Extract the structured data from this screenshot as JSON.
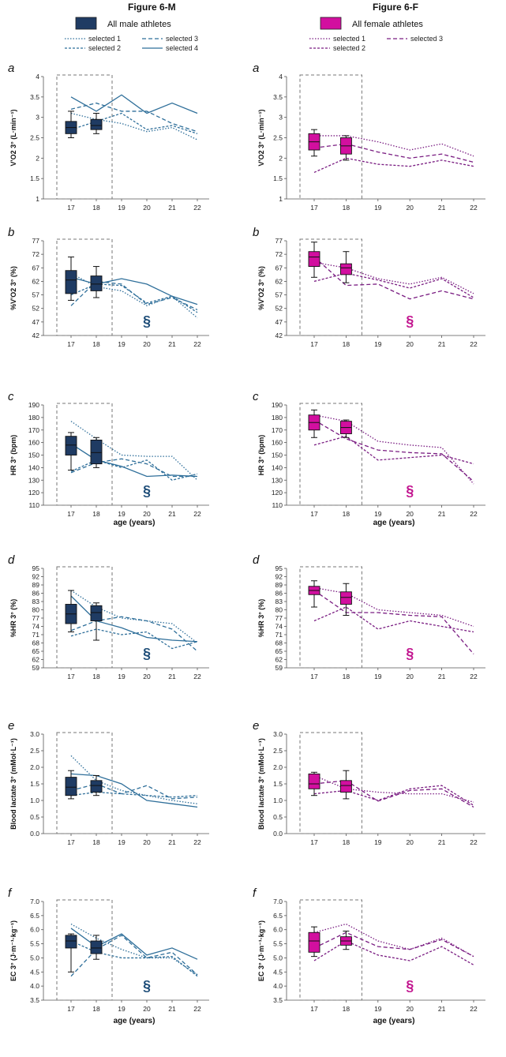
{
  "columns": [
    {
      "title": "Figure 6-M",
      "legend_box_label": "All male athletes",
      "legend_lines": [
        "selected 1",
        "selected 2",
        "selected 3",
        "selected 4"
      ],
      "colors": {
        "primary": "#1f3b63",
        "line": "#2f6f9a",
        "section": "#1f4e79"
      }
    },
    {
      "title": "Figure 6-F",
      "legend_box_label": "All female athletes",
      "legend_lines": [
        "selected 1",
        "selected 2",
        "selected 3"
      ],
      "colors": {
        "primary": "#d20f9f",
        "line": "#7a1d82",
        "section": "#c2158f"
      }
    }
  ],
  "xlabel": "age (years)",
  "x_ticks": [
    "17",
    "18",
    "19",
    "20",
    "21",
    "22"
  ],
  "section_symbol": "§",
  "chart_data": [
    {
      "id": "a-M",
      "type": "line",
      "panel": "a",
      "group": "male",
      "ylabel": "V'O2 3° (L·min⁻¹)",
      "ylim": [
        1,
        4
      ],
      "y_ticks": [
        "1",
        "1.5",
        "2",
        "2.5",
        "3",
        "3.5",
        "4"
      ],
      "x": [
        17,
        18,
        19,
        20,
        21,
        22
      ],
      "series": [
        {
          "name": "selected 1",
          "values": [
            3.1,
            2.95,
            2.85,
            2.65,
            2.75,
            2.45
          ]
        },
        {
          "name": "selected 2",
          "values": [
            2.7,
            2.9,
            3.1,
            2.7,
            2.8,
            2.6
          ]
        },
        {
          "name": "selected 3",
          "values": [
            3.2,
            3.35,
            3.15,
            3.15,
            2.85,
            2.65
          ]
        },
        {
          "name": "selected 4",
          "values": [
            3.5,
            3.15,
            3.55,
            3.1,
            3.35,
            3.1
          ]
        }
      ],
      "boxplots": [
        {
          "x": 17,
          "min": 2.5,
          "q1": 2.6,
          "median": 2.75,
          "q3": 2.9,
          "max": 3.15
        },
        {
          "x": 18,
          "min": 2.6,
          "q1": 2.7,
          "median": 2.8,
          "q3": 2.95,
          "max": 3.1
        }
      ],
      "significance": ""
    },
    {
      "id": "a-F",
      "type": "line",
      "panel": "a",
      "group": "female",
      "ylabel": "V'O2 3° (L·min⁻¹)",
      "ylim": [
        1,
        4
      ],
      "y_ticks": [
        "1",
        "1.5",
        "2",
        "2.5",
        "3",
        "3.5",
        "4"
      ],
      "x": [
        17,
        18,
        19,
        20,
        21,
        22
      ],
      "series": [
        {
          "name": "selected 1",
          "values": [
            2.55,
            2.55,
            2.4,
            2.2,
            2.35,
            2.05
          ]
        },
        {
          "name": "selected 2",
          "values": [
            1.65,
            2.0,
            1.85,
            1.8,
            1.95,
            1.8
          ]
        },
        {
          "name": "selected 3",
          "values": [
            2.25,
            2.35,
            2.15,
            2.0,
            2.1,
            1.9
          ]
        }
      ],
      "boxplots": [
        {
          "x": 17,
          "min": 2.05,
          "q1": 2.2,
          "median": 2.4,
          "q3": 2.6,
          "max": 2.7
        },
        {
          "x": 18,
          "min": 1.95,
          "q1": 2.1,
          "median": 2.3,
          "q3": 2.5,
          "max": 2.55
        }
      ],
      "significance": ""
    },
    {
      "id": "b-M",
      "type": "line",
      "panel": "b",
      "group": "male",
      "ylabel": "%V'O2 3° (%)",
      "ylim": [
        42,
        77
      ],
      "y_ticks": [
        "42",
        "47",
        "52",
        "57",
        "62",
        "67",
        "72",
        "77"
      ],
      "x": [
        17,
        18,
        19,
        20,
        21,
        22
      ],
      "series": [
        {
          "name": "selected 1",
          "values": [
            65,
            60,
            58.5,
            53,
            56.5,
            48.5
          ]
        },
        {
          "name": "selected 2",
          "values": [
            57,
            61,
            60.5,
            54,
            56.5,
            50.5
          ]
        },
        {
          "name": "selected 3",
          "values": [
            53,
            62,
            61,
            53.5,
            56,
            51.5
          ]
        },
        {
          "name": "selected 4",
          "values": [
            63.5,
            61,
            63,
            61,
            56.5,
            53.5
          ]
        }
      ],
      "boxplots": [
        {
          "x": 17,
          "min": 55,
          "q1": 57.5,
          "median": 62.5,
          "q3": 66,
          "max": 71
        },
        {
          "x": 18,
          "min": 56,
          "q1": 58.5,
          "median": 61,
          "q3": 64,
          "max": 67.5
        }
      ],
      "significance": "§"
    },
    {
      "id": "b-F",
      "type": "line",
      "panel": "b",
      "group": "female",
      "ylabel": "%V'O2 3° (%)",
      "ylim": [
        42,
        77
      ],
      "y_ticks": [
        "42",
        "47",
        "52",
        "57",
        "62",
        "67",
        "72",
        "77"
      ],
      "x": [
        17,
        18,
        19,
        20,
        21,
        22
      ],
      "series": [
        {
          "name": "selected 1",
          "values": [
            69,
            67,
            63,
            61,
            63.5,
            57.5
          ]
        },
        {
          "name": "selected 2",
          "values": [
            62,
            65,
            62.5,
            59.5,
            63,
            56
          ]
        },
        {
          "name": "selected 3",
          "values": [
            71,
            60.5,
            61,
            55.5,
            58.5,
            55.5
          ]
        }
      ],
      "boxplots": [
        {
          "x": 17,
          "min": 63.5,
          "q1": 67.5,
          "median": 71,
          "q3": 73,
          "max": 76.5
        },
        {
          "x": 18,
          "min": 61.5,
          "q1": 64.5,
          "median": 67,
          "q3": 68.5,
          "max": 73
        }
      ],
      "significance": "§"
    },
    {
      "id": "c-M",
      "type": "line",
      "panel": "c",
      "group": "male",
      "ylabel": "HR 3° (bpm)",
      "ylim": [
        110,
        190
      ],
      "y_ticks": [
        "110",
        "120",
        "130",
        "140",
        "150",
        "160",
        "170",
        "180",
        "190"
      ],
      "x": [
        17,
        18,
        19,
        20,
        21,
        22
      ],
      "series": [
        {
          "name": "selected 1",
          "values": [
            177,
            163,
            150,
            149,
            149,
            130
          ]
        },
        {
          "name": "selected 2",
          "values": [
            137,
            146,
            140,
            146,
            130,
            135
          ]
        },
        {
          "name": "selected 3",
          "values": [
            136,
            144,
            147,
            143,
            133,
            133
          ]
        },
        {
          "name": "selected 4",
          "values": [
            159,
            146,
            141,
            133,
            134,
            133
          ]
        }
      ],
      "boxplots": [
        {
          "x": 17,
          "min": 138,
          "q1": 150,
          "median": 158,
          "q3": 165,
          "max": 168
        },
        {
          "x": 18,
          "min": 140,
          "q1": 143,
          "median": 152,
          "q3": 162,
          "max": 164
        }
      ],
      "significance": "§"
    },
    {
      "id": "c-F",
      "type": "line",
      "panel": "c",
      "group": "female",
      "ylabel": "HR 3° (bpm)",
      "ylim": [
        110,
        190
      ],
      "y_ticks": [
        "110",
        "120",
        "130",
        "140",
        "150",
        "160",
        "170",
        "180",
        "190"
      ],
      "x": [
        17,
        18,
        19,
        20,
        21,
        22
      ],
      "series": [
        {
          "name": "selected 1",
          "values": [
            182,
            177,
            161,
            158,
            156,
            127
          ]
        },
        {
          "name": "selected 2",
          "values": [
            158,
            165,
            146,
            148,
            150,
            143
          ]
        },
        {
          "name": "selected 3",
          "values": [
            178,
            163,
            154,
            152,
            151,
            129
          ]
        }
      ],
      "boxplots": [
        {
          "x": 17,
          "min": 164,
          "q1": 170,
          "median": 176,
          "q3": 182,
          "max": 186
        },
        {
          "x": 18,
          "min": 164,
          "q1": 167,
          "median": 172,
          "q3": 177,
          "max": 178
        }
      ],
      "significance": "§"
    },
    {
      "id": "d-M",
      "type": "line",
      "panel": "d",
      "group": "male",
      "ylabel": "%HR 3° (%)",
      "ylim": [
        59,
        95
      ],
      "y_ticks": [
        "59",
        "62",
        "65",
        "68",
        "71",
        "74",
        "77",
        "80",
        "83",
        "86",
        "89",
        "92",
        "95"
      ],
      "x": [
        17,
        18,
        19,
        20,
        21,
        22
      ],
      "series": [
        {
          "name": "selected 1",
          "values": [
            87,
            81,
            77,
            76,
            75,
            68
          ]
        },
        {
          "name": "selected 2",
          "values": [
            70.5,
            73,
            71,
            72,
            66,
            68.5
          ]
        },
        {
          "name": "selected 3",
          "values": [
            72.5,
            76,
            77.5,
            76,
            73,
            65
          ]
        },
        {
          "name": "selected 4",
          "values": [
            85,
            76,
            73.5,
            70,
            69,
            68.5
          ]
        }
      ],
      "boxplots": [
        {
          "x": 17,
          "min": 72,
          "q1": 75,
          "median": 78.5,
          "q3": 82,
          "max": 87
        },
        {
          "x": 18,
          "min": 69,
          "q1": 76,
          "median": 79,
          "q3": 81.5,
          "max": 82.5
        }
      ],
      "significance": "§"
    },
    {
      "id": "d-F",
      "type": "line",
      "panel": "d",
      "group": "female",
      "ylabel": "%HR 3° (%)",
      "ylim": [
        59,
        95
      ],
      "y_ticks": [
        "59",
        "62",
        "65",
        "68",
        "71",
        "74",
        "77",
        "80",
        "83",
        "86",
        "89",
        "92",
        "95"
      ],
      "x": [
        17,
        18,
        19,
        20,
        21,
        22
      ],
      "series": [
        {
          "name": "selected 1",
          "values": [
            88,
            86,
            80,
            79,
            78,
            74
          ]
        },
        {
          "name": "selected 2",
          "values": [
            76,
            81,
            73,
            76,
            74,
            72
          ]
        },
        {
          "name": "selected 3",
          "values": [
            87,
            79,
            79,
            78,
            77.5,
            64
          ]
        }
      ],
      "boxplots": [
        {
          "x": 17,
          "min": 81,
          "q1": 85.5,
          "median": 87,
          "q3": 88.5,
          "max": 90.5
        },
        {
          "x": 18,
          "min": 78,
          "q1": 82,
          "median": 84.5,
          "q3": 86.5,
          "max": 89.5
        }
      ],
      "significance": "§"
    },
    {
      "id": "e-M",
      "type": "line",
      "panel": "e",
      "group": "male",
      "ylabel": "Blood lactate 3° (mMol·L⁻¹)",
      "ylim": [
        0,
        3
      ],
      "y_ticks": [
        "0.0",
        "0.5",
        "1.0",
        "1.5",
        "2.0",
        "2.5",
        "3.0"
      ],
      "x": [
        17,
        18,
        19,
        20,
        21,
        22
      ],
      "series": [
        {
          "name": "selected 1",
          "values": [
            2.35,
            1.6,
            1.3,
            1.15,
            1.0,
            0.9
          ]
        },
        {
          "name": "selected 2",
          "values": [
            1.15,
            1.25,
            1.2,
            1.15,
            1.1,
            1.15
          ]
        },
        {
          "name": "selected 3",
          "values": [
            1.3,
            1.5,
            1.2,
            1.45,
            1.05,
            1.1
          ]
        },
        {
          "name": "selected 4",
          "values": [
            1.8,
            1.75,
            1.5,
            1.0,
            0.9,
            0.8
          ]
        }
      ],
      "boxplots": [
        {
          "x": 17,
          "min": 1.05,
          "q1": 1.15,
          "median": 1.4,
          "q3": 1.7,
          "max": 1.9
        },
        {
          "x": 18,
          "min": 1.15,
          "q1": 1.25,
          "median": 1.45,
          "q3": 1.6,
          "max": 1.75
        }
      ],
      "significance": ""
    },
    {
      "id": "e-F",
      "type": "line",
      "panel": "e",
      "group": "female",
      "ylabel": "Blood lactate 3° (mMol·L⁻¹)",
      "ylim": [
        0,
        3
      ],
      "y_ticks": [
        "0.0",
        "0.5",
        "1.0",
        "1.5",
        "2.0",
        "2.5",
        "3.0"
      ],
      "x": [
        17,
        18,
        19,
        20,
        21,
        22
      ],
      "series": [
        {
          "name": "selected 1",
          "values": [
            1.75,
            1.35,
            1.25,
            1.2,
            1.2,
            0.95
          ]
        },
        {
          "name": "selected 2",
          "values": [
            1.2,
            1.3,
            1.0,
            1.35,
            1.45,
            0.85
          ]
        },
        {
          "name": "selected 3",
          "values": [
            1.5,
            1.6,
            0.98,
            1.3,
            1.35,
            0.8
          ]
        }
      ],
      "boxplots": [
        {
          "x": 17,
          "min": 1.15,
          "q1": 1.35,
          "median": 1.5,
          "q3": 1.8,
          "max": 1.85
        },
        {
          "x": 18,
          "min": 1.05,
          "q1": 1.25,
          "median": 1.45,
          "q3": 1.6,
          "max": 1.9
        }
      ],
      "significance": ""
    },
    {
      "id": "f-M",
      "type": "line",
      "panel": "f",
      "group": "male",
      "ylabel": "EC 3° (J·m⁻¹·kg⁻¹)",
      "ylim": [
        3.5,
        7
      ],
      "y_ticks": [
        "3.5",
        "4.0",
        "4.5",
        "5.0",
        "5.5",
        "6.0",
        "6.5",
        "7.0"
      ],
      "x": [
        17,
        18,
        19,
        20,
        21,
        22
      ],
      "series": [
        {
          "name": "selected 1",
          "values": [
            6.2,
            5.7,
            5.3,
            5.0,
            5.0,
            4.4
          ]
        },
        {
          "name": "selected 2",
          "values": [
            5.6,
            5.2,
            5.0,
            5.0,
            5.05,
            4.35
          ]
        },
        {
          "name": "selected 3",
          "values": [
            4.35,
            5.3,
            5.8,
            5.0,
            5.2,
            4.4
          ]
        },
        {
          "name": "selected 4",
          "values": [
            6.05,
            5.4,
            5.85,
            5.1,
            5.35,
            4.95
          ]
        }
      ],
      "boxplots": [
        {
          "x": 17,
          "min": 4.5,
          "q1": 5.35,
          "median": 5.6,
          "q3": 5.8,
          "max": 5.85
        },
        {
          "x": 18,
          "min": 4.95,
          "q1": 5.15,
          "median": 5.35,
          "q3": 5.6,
          "max": 5.8
        }
      ],
      "significance": "§"
    },
    {
      "id": "f-F",
      "type": "line",
      "panel": "f",
      "group": "female",
      "ylabel": "EC 3° (J·m⁻¹·kg⁻¹)",
      "ylim": [
        3.5,
        7
      ],
      "y_ticks": [
        "3.5",
        "4.0",
        "4.5",
        "5.0",
        "5.5",
        "6.0",
        "6.5",
        "7.0"
      ],
      "x": [
        17,
        18,
        19,
        20,
        21,
        22
      ],
      "series": [
        {
          "name": "selected 1",
          "values": [
            5.9,
            6.2,
            5.6,
            5.3,
            5.7,
            5.05
          ]
        },
        {
          "name": "selected 2",
          "values": [
            4.9,
            5.6,
            5.1,
            4.9,
            5.4,
            4.75
          ]
        },
        {
          "name": "selected 3",
          "values": [
            5.35,
            5.9,
            5.4,
            5.3,
            5.65,
            5.05
          ]
        }
      ],
      "boxplots": [
        {
          "x": 17,
          "min": 5.05,
          "q1": 5.2,
          "median": 5.6,
          "q3": 5.9,
          "max": 6.1
        },
        {
          "x": 18,
          "min": 5.3,
          "q1": 5.45,
          "median": 5.6,
          "q3": 5.75,
          "max": 5.95
        }
      ],
      "significance": "§"
    }
  ]
}
